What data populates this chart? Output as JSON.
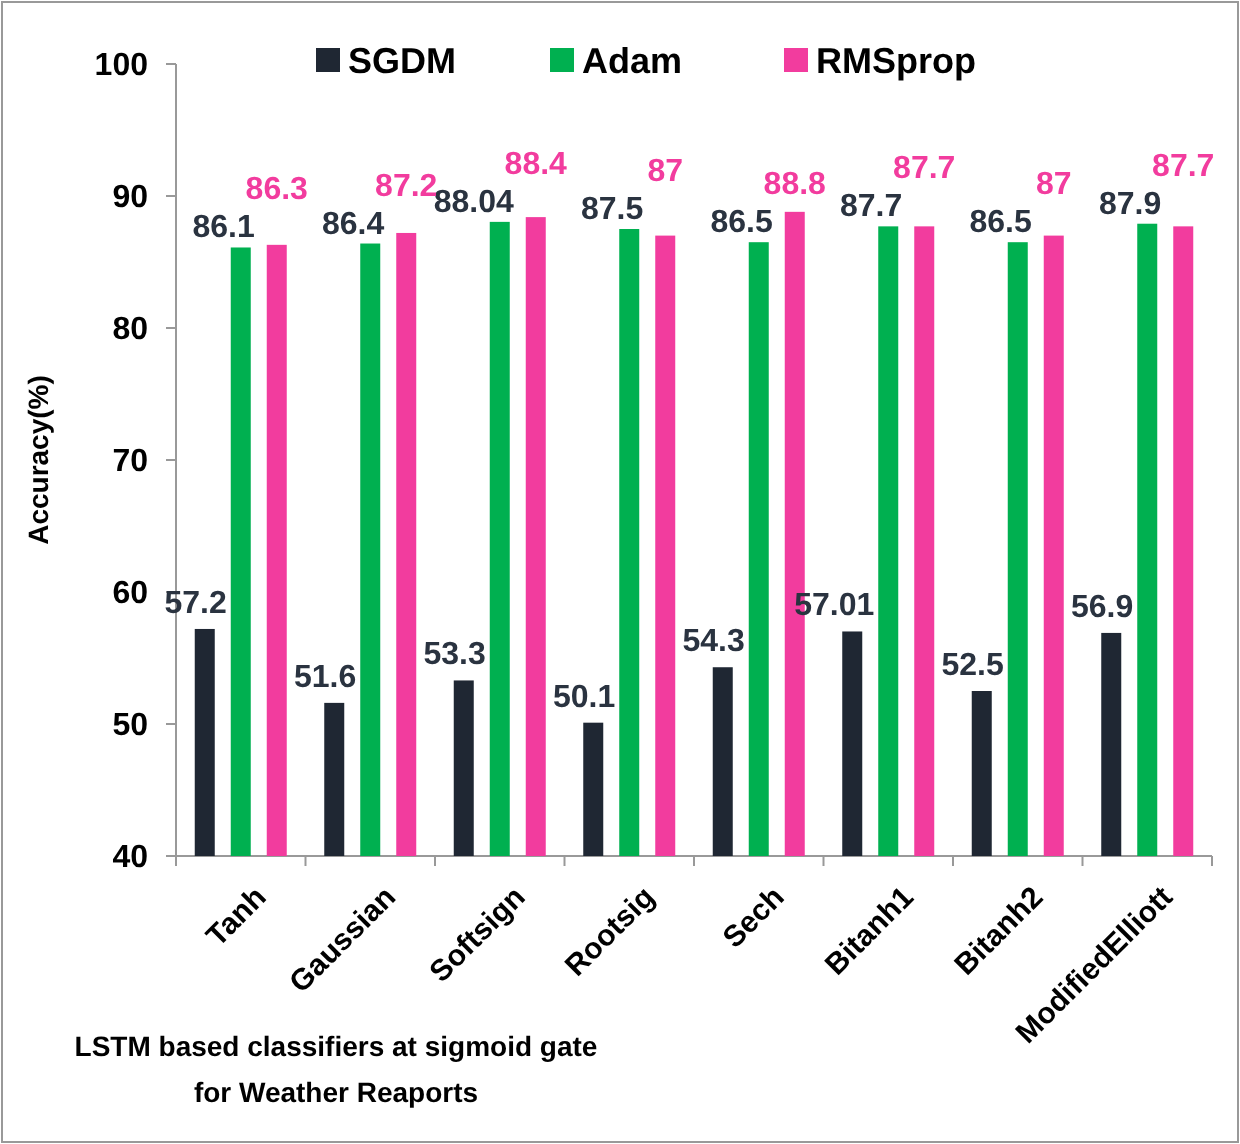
{
  "chart_data": {
    "type": "bar",
    "ylabel": "Accuracy(%)",
    "xlabel": "LSTM based classifiers at sigmoid gate\nfor Weather Reaports",
    "categories": [
      "Tanh",
      "Gaussian",
      "Softsign",
      "Rootsig",
      "Sech",
      "Bitanh1",
      "Bitanh2",
      "ModifiedElliott"
    ],
    "series": [
      {
        "name": "SGDM",
        "color": "#1f2733",
        "values": [
          57.2,
          51.6,
          53.3,
          50.1,
          54.3,
          57.01,
          52.5,
          56.9
        ]
      },
      {
        "name": "Adam",
        "color": "#00b050",
        "values": [
          86.1,
          86.4,
          88.04,
          87.5,
          86.5,
          87.7,
          86.5,
          87.9
        ]
      },
      {
        "name": "RMSprop",
        "color": "#f23c9e",
        "values": [
          86.3,
          87.2,
          88.4,
          87,
          88.8,
          87.7,
          87,
          87.7
        ]
      }
    ],
    "ylim": [
      40,
      100
    ],
    "yticks": [
      40,
      50,
      60,
      70,
      80,
      90,
      100
    ],
    "grid": false,
    "legend": "top",
    "data_labels": true
  }
}
